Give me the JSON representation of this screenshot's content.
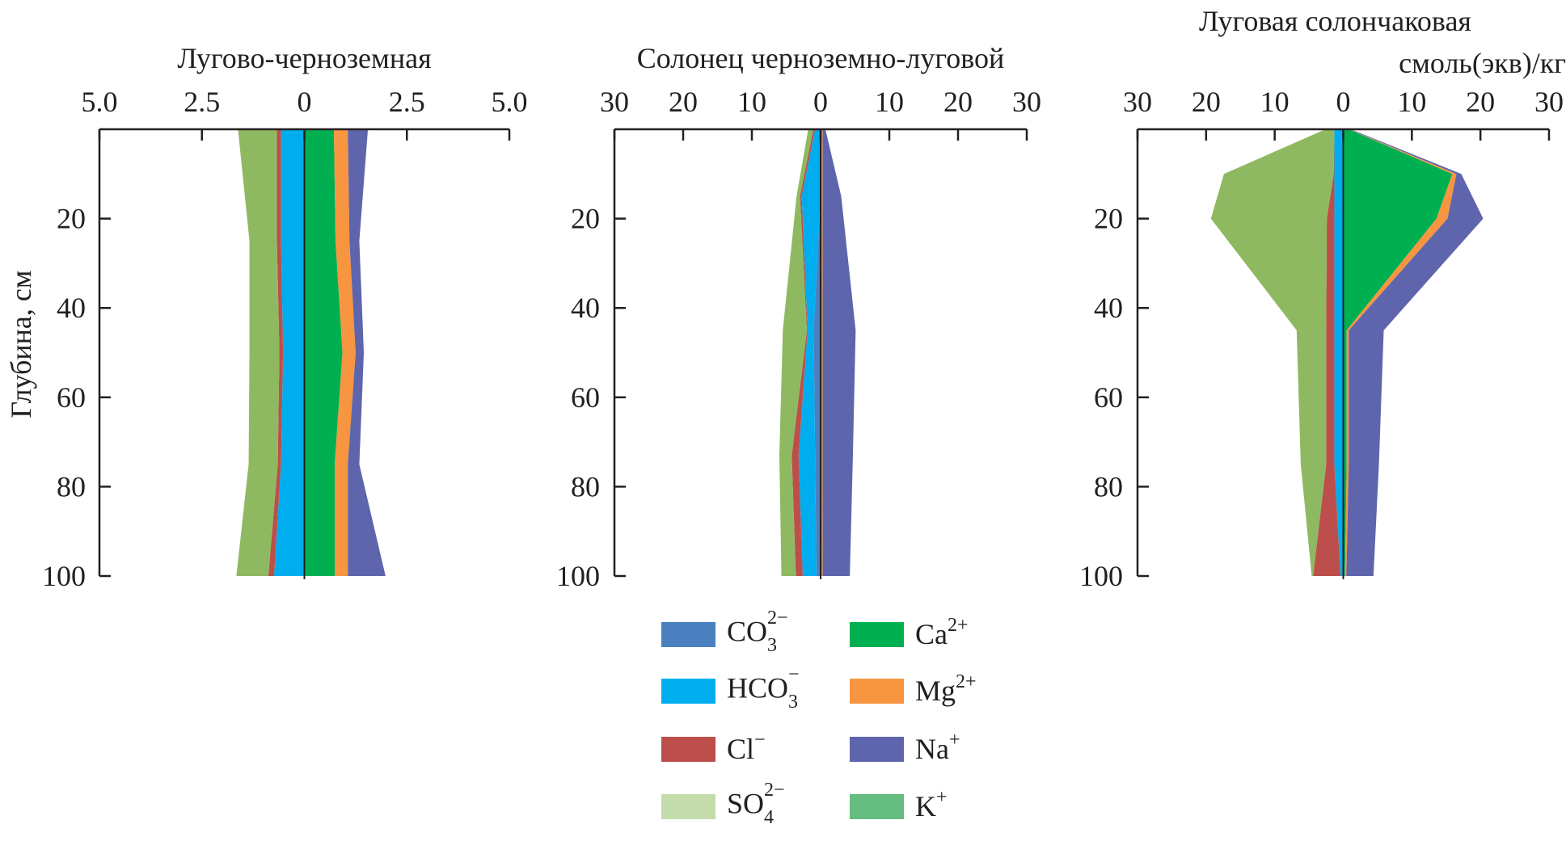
{
  "chart_data": [
    {
      "type": "area",
      "title": "Лугово-черноземная",
      "xlim": [
        -5,
        5
      ],
      "x_ticks": [
        -5,
        -2.5,
        0,
        2.5,
        5
      ],
      "x_tick_labels": [
        "5.0",
        "2.5",
        "0",
        "2.5",
        "5.0"
      ],
      "ylim": [
        0,
        100
      ],
      "y_ticks": [
        20,
        40,
        60,
        80,
        100
      ],
      "y_tick_labels": [
        "20",
        "40",
        "60",
        "80",
        "100"
      ],
      "ylabel": "Глубина, см",
      "depth": [
        0,
        25,
        50,
        75,
        100
      ],
      "anions": [
        {
          "name": "CO3",
          "values": [
            0,
            0,
            0,
            0,
            0
          ]
        },
        {
          "name": "HCO3",
          "values": [
            0.57,
            0.57,
            0.52,
            0.57,
            0.74
          ]
        },
        {
          "name": "Cl",
          "values": [
            0.1,
            0.1,
            0.09,
            0.08,
            0.14
          ]
        },
        {
          "name": "SO4",
          "values": [
            0.95,
            0.67,
            0.73,
            0.71,
            0.78
          ]
        }
      ],
      "cations": [
        {
          "name": "Ca",
          "values": [
            0.72,
            0.76,
            0.93,
            0.74,
            0.74
          ]
        },
        {
          "name": "Mg",
          "values": [
            0.34,
            0.34,
            0.32,
            0.32,
            0.32
          ]
        },
        {
          "name": "Na",
          "values": [
            0.49,
            0.24,
            0.2,
            0.28,
            0.92
          ]
        },
        {
          "name": "K",
          "values": [
            0,
            0,
            0,
            0,
            0
          ]
        }
      ]
    },
    {
      "type": "area",
      "title": "Солонец черноземно-луговой",
      "xlim": [
        -30,
        30
      ],
      "x_ticks": [
        -30,
        -20,
        -10,
        0,
        10,
        20,
        30
      ],
      "x_tick_labels": [
        "30",
        "20",
        "10",
        "0",
        "10",
        "20",
        "30"
      ],
      "ylim": [
        0,
        100
      ],
      "y_ticks": [
        20,
        40,
        60,
        80,
        100
      ],
      "y_tick_labels": [
        "20",
        "40",
        "60",
        "80",
        "100"
      ],
      "depth": [
        0,
        15,
        45,
        73,
        100
      ],
      "anions": [
        {
          "name": "CO3",
          "values": [
            0,
            0,
            1.0,
            0.8,
            0.6
          ]
        },
        {
          "name": "HCO3",
          "values": [
            0.8,
            2.75,
            0.9,
            2.4,
            2.0
          ]
        },
        {
          "name": "Cl",
          "values": [
            0.26,
            0.25,
            0.1,
            1.0,
            1.0
          ]
        },
        {
          "name": "SO4",
          "values": [
            0.74,
            0.5,
            3.5,
            1.8,
            2.1
          ]
        }
      ],
      "cations": [
        {
          "name": "Ca",
          "values": [
            0.2,
            0.2,
            0.2,
            0.2,
            0.2
          ]
        },
        {
          "name": "Mg",
          "values": [
            0.1,
            0.1,
            0.1,
            0.1,
            0.1
          ]
        },
        {
          "name": "Na",
          "values": [
            0.4,
            2.7,
            4.8,
            4.4,
            3.95
          ]
        },
        {
          "name": "K",
          "values": [
            0,
            0,
            0,
            0,
            0
          ]
        }
      ]
    },
    {
      "type": "area",
      "title": "Луговая солончаковая",
      "unit_label": "смоль(экв)/кг",
      "xlim": [
        -30,
        30
      ],
      "x_ticks": [
        -30,
        -20,
        -10,
        0,
        10,
        20,
        30
      ],
      "x_tick_labels": [
        "30",
        "20",
        "10",
        "0",
        "10",
        "20",
        "30"
      ],
      "ylim": [
        0,
        100
      ],
      "y_ticks": [
        20,
        40,
        60,
        80,
        100
      ],
      "y_tick_labels": [
        "20",
        "40",
        "60",
        "80",
        "100"
      ],
      "depth": [
        0,
        10,
        20,
        45,
        75,
        100
      ],
      "anions": [
        {
          "name": "CO3",
          "values": [
            0,
            0,
            0,
            0,
            0,
            0
          ]
        },
        {
          "name": "HCO3",
          "values": [
            1.3,
            1.3,
            1.3,
            1.3,
            1.3,
            0.4
          ]
        },
        {
          "name": "Cl",
          "values": [
            0,
            0.1,
            1.1,
            1.2,
            1.2,
            4.0
          ]
        },
        {
          "name": "SO4",
          "values": [
            1.3,
            16.0,
            16.9,
            4.3,
            3.7,
            0.2
          ]
        }
      ],
      "cations": [
        {
          "name": "Ca",
          "values": [
            0.8,
            15.9,
            13.6,
            0.5,
            0.5,
            0.25
          ]
        },
        {
          "name": "Mg",
          "values": [
            0.1,
            0.6,
            1.6,
            0.3,
            0.3,
            0.2
          ]
        },
        {
          "name": "Na",
          "values": [
            0.2,
            0.7,
            5.2,
            5.1,
            4.4,
            3.95
          ]
        },
        {
          "name": "K",
          "values": [
            0,
            0,
            0,
            0,
            0,
            0
          ]
        }
      ]
    }
  ],
  "colors": {
    "CO3": "#4a80bf",
    "HCO3": "#00aeef",
    "Cl": "#bc4f4c",
    "SO4": "#c4dcab",
    "SO4_area": "#8fb960",
    "Ca": "#00b050",
    "Mg": "#f79541",
    "Na": "#5e65ac",
    "K": "#66bd80"
  },
  "legend": [
    {
      "id": "CO3",
      "base": "CO",
      "sub": "3",
      "sup": "2−"
    },
    {
      "id": "HCO3",
      "base": "HCO",
      "sub": "3",
      "sup": "−"
    },
    {
      "id": "Cl",
      "base": "Cl",
      "sub": "",
      "sup": "−"
    },
    {
      "id": "SO4",
      "base": "SO",
      "sub": "4",
      "sup": "2−"
    },
    {
      "id": "Ca",
      "base": "Ca",
      "sub": "",
      "sup": "2+"
    },
    {
      "id": "Mg",
      "base": "Mg",
      "sub": "",
      "sup": "2+"
    },
    {
      "id": "Na",
      "base": "Na",
      "sub": "",
      "sup": "+"
    },
    {
      "id": "K",
      "base": "K",
      "sub": "",
      "sup": "+"
    }
  ]
}
